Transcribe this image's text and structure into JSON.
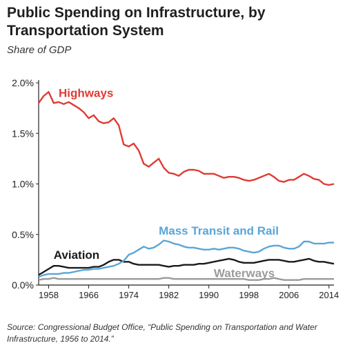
{
  "chart_data": {
    "type": "line",
    "title": "Public Spending on Infrastructure, by Transportation System",
    "subtitle": "Share of GDP",
    "xlabel": "",
    "ylabel": "",
    "xlim": [
      1956,
      2015
    ],
    "ylim": [
      0,
      2.0
    ],
    "y_ticks": [
      "0.0%",
      "0.5%",
      "1.0%",
      "1.5%",
      "2.0%"
    ],
    "y_tick_values": [
      0,
      0.5,
      1.0,
      1.5,
      2.0
    ],
    "x_ticks": [
      "1958",
      "1966",
      "1974",
      "1982",
      "1990",
      "1998",
      "2006",
      "2014"
    ],
    "x_tick_values": [
      1958,
      1966,
      1974,
      1982,
      1990,
      1998,
      2006,
      2014
    ],
    "grid": false,
    "series": [
      {
        "name": "Highways",
        "color": "#e03a32",
        "x": [
          1956,
          1957,
          1958,
          1959,
          1960,
          1961,
          1962,
          1963,
          1964,
          1965,
          1966,
          1967,
          1968,
          1969,
          1970,
          1971,
          1972,
          1973,
          1974,
          1975,
          1976,
          1977,
          1978,
          1979,
          1980,
          1981,
          1982,
          1983,
          1984,
          1985,
          1986,
          1987,
          1988,
          1989,
          1990,
          1991,
          1992,
          1993,
          1994,
          1995,
          1996,
          1997,
          1998,
          1999,
          2000,
          2001,
          2002,
          2003,
          2004,
          2005,
          2006,
          2007,
          2008,
          2009,
          2010,
          2011,
          2012,
          2013,
          2014,
          2015
        ],
        "values": [
          1.8,
          1.87,
          1.91,
          1.8,
          1.81,
          1.79,
          1.81,
          1.78,
          1.75,
          1.71,
          1.65,
          1.68,
          1.62,
          1.6,
          1.61,
          1.65,
          1.58,
          1.39,
          1.37,
          1.4,
          1.33,
          1.2,
          1.17,
          1.21,
          1.25,
          1.16,
          1.11,
          1.1,
          1.08,
          1.12,
          1.14,
          1.14,
          1.13,
          1.1,
          1.1,
          1.1,
          1.08,
          1.06,
          1.07,
          1.07,
          1.06,
          1.04,
          1.03,
          1.04,
          1.06,
          1.08,
          1.1,
          1.07,
          1.03,
          1.02,
          1.04,
          1.04,
          1.07,
          1.1,
          1.08,
          1.05,
          1.04,
          1.0,
          0.99,
          1.0
        ]
      },
      {
        "name": "Mass Transit and Rail",
        "color": "#5aa5d8",
        "x": [
          1956,
          1957,
          1958,
          1959,
          1960,
          1961,
          1962,
          1963,
          1964,
          1965,
          1966,
          1967,
          1968,
          1969,
          1970,
          1971,
          1972,
          1973,
          1974,
          1975,
          1976,
          1977,
          1978,
          1979,
          1980,
          1981,
          1982,
          1983,
          1984,
          1985,
          1986,
          1987,
          1988,
          1989,
          1990,
          1991,
          1992,
          1993,
          1994,
          1995,
          1996,
          1997,
          1998,
          1999,
          2000,
          2001,
          2002,
          2003,
          2004,
          2005,
          2006,
          2007,
          2008,
          2009,
          2010,
          2011,
          2012,
          2013,
          2014,
          2015
        ],
        "values": [
          0.08,
          0.1,
          0.11,
          0.11,
          0.11,
          0.12,
          0.12,
          0.13,
          0.14,
          0.15,
          0.15,
          0.16,
          0.16,
          0.17,
          0.18,
          0.19,
          0.21,
          0.24,
          0.3,
          0.32,
          0.35,
          0.38,
          0.36,
          0.37,
          0.4,
          0.44,
          0.43,
          0.41,
          0.4,
          0.38,
          0.37,
          0.37,
          0.36,
          0.35,
          0.35,
          0.36,
          0.35,
          0.36,
          0.37,
          0.37,
          0.36,
          0.34,
          0.33,
          0.32,
          0.33,
          0.36,
          0.38,
          0.39,
          0.39,
          0.37,
          0.36,
          0.36,
          0.38,
          0.43,
          0.43,
          0.41,
          0.41,
          0.41,
          0.42,
          0.42
        ]
      },
      {
        "name": "Aviation",
        "color": "#1a1a1a",
        "x": [
          1956,
          1957,
          1958,
          1959,
          1960,
          1961,
          1962,
          1963,
          1964,
          1965,
          1966,
          1967,
          1968,
          1969,
          1970,
          1971,
          1972,
          1973,
          1974,
          1975,
          1976,
          1977,
          1978,
          1979,
          1980,
          1981,
          1982,
          1983,
          1984,
          1985,
          1986,
          1987,
          1988,
          1989,
          1990,
          1991,
          1992,
          1993,
          1994,
          1995,
          1996,
          1997,
          1998,
          1999,
          2000,
          2001,
          2002,
          2003,
          2004,
          2005,
          2006,
          2007,
          2008,
          2009,
          2010,
          2011,
          2012,
          2013,
          2014,
          2015
        ],
        "values": [
          0.1,
          0.13,
          0.16,
          0.19,
          0.19,
          0.18,
          0.17,
          0.17,
          0.17,
          0.17,
          0.17,
          0.18,
          0.18,
          0.2,
          0.23,
          0.25,
          0.25,
          0.23,
          0.23,
          0.21,
          0.2,
          0.2,
          0.2,
          0.2,
          0.2,
          0.19,
          0.18,
          0.19,
          0.19,
          0.2,
          0.2,
          0.2,
          0.21,
          0.21,
          0.22,
          0.23,
          0.24,
          0.25,
          0.26,
          0.25,
          0.23,
          0.22,
          0.22,
          0.22,
          0.23,
          0.24,
          0.25,
          0.25,
          0.25,
          0.24,
          0.23,
          0.23,
          0.24,
          0.25,
          0.26,
          0.24,
          0.23,
          0.23,
          0.22,
          0.21
        ]
      },
      {
        "name": "Waterways",
        "color": "#9a9a9a",
        "x": [
          1956,
          1957,
          1958,
          1959,
          1960,
          1961,
          1962,
          1963,
          1964,
          1965,
          1966,
          1967,
          1968,
          1969,
          1970,
          1971,
          1972,
          1973,
          1974,
          1975,
          1976,
          1977,
          1978,
          1979,
          1980,
          1981,
          1982,
          1983,
          1984,
          1985,
          1986,
          1987,
          1988,
          1989,
          1990,
          1991,
          1992,
          1993,
          1994,
          1995,
          1996,
          1997,
          1998,
          1999,
          2000,
          2001,
          2002,
          2003,
          2004,
          2005,
          2006,
          2007,
          2008,
          2009,
          2010,
          2011,
          2012,
          2013,
          2014,
          2015
        ],
        "values": [
          0.05,
          0.06,
          0.06,
          0.07,
          0.06,
          0.06,
          0.06,
          0.06,
          0.06,
          0.06,
          0.06,
          0.06,
          0.06,
          0.06,
          0.06,
          0.06,
          0.06,
          0.06,
          0.06,
          0.06,
          0.06,
          0.06,
          0.06,
          0.06,
          0.06,
          0.07,
          0.07,
          0.06,
          0.06,
          0.06,
          0.06,
          0.06,
          0.06,
          0.06,
          0.06,
          0.06,
          0.06,
          0.06,
          0.06,
          0.06,
          0.06,
          0.06,
          0.05,
          0.05,
          0.05,
          0.06,
          0.06,
          0.07,
          0.06,
          0.05,
          0.05,
          0.05,
          0.05,
          0.06,
          0.06,
          0.06,
          0.06,
          0.06,
          0.06,
          0.06
        ]
      }
    ],
    "series_labels": [
      {
        "text": "Highways",
        "color": "#e03a32"
      },
      {
        "text": "Mass Transit and Rail",
        "color": "#5aa5d8"
      },
      {
        "text": "Aviation",
        "color": "#1a1a1a"
      },
      {
        "text": "Waterways",
        "color": "#9a9a9a"
      }
    ]
  },
  "source": "Source: Congressional Budget Office, “Public Spending on Transportation and Water Infrastructure, 1956 to 2014.”"
}
